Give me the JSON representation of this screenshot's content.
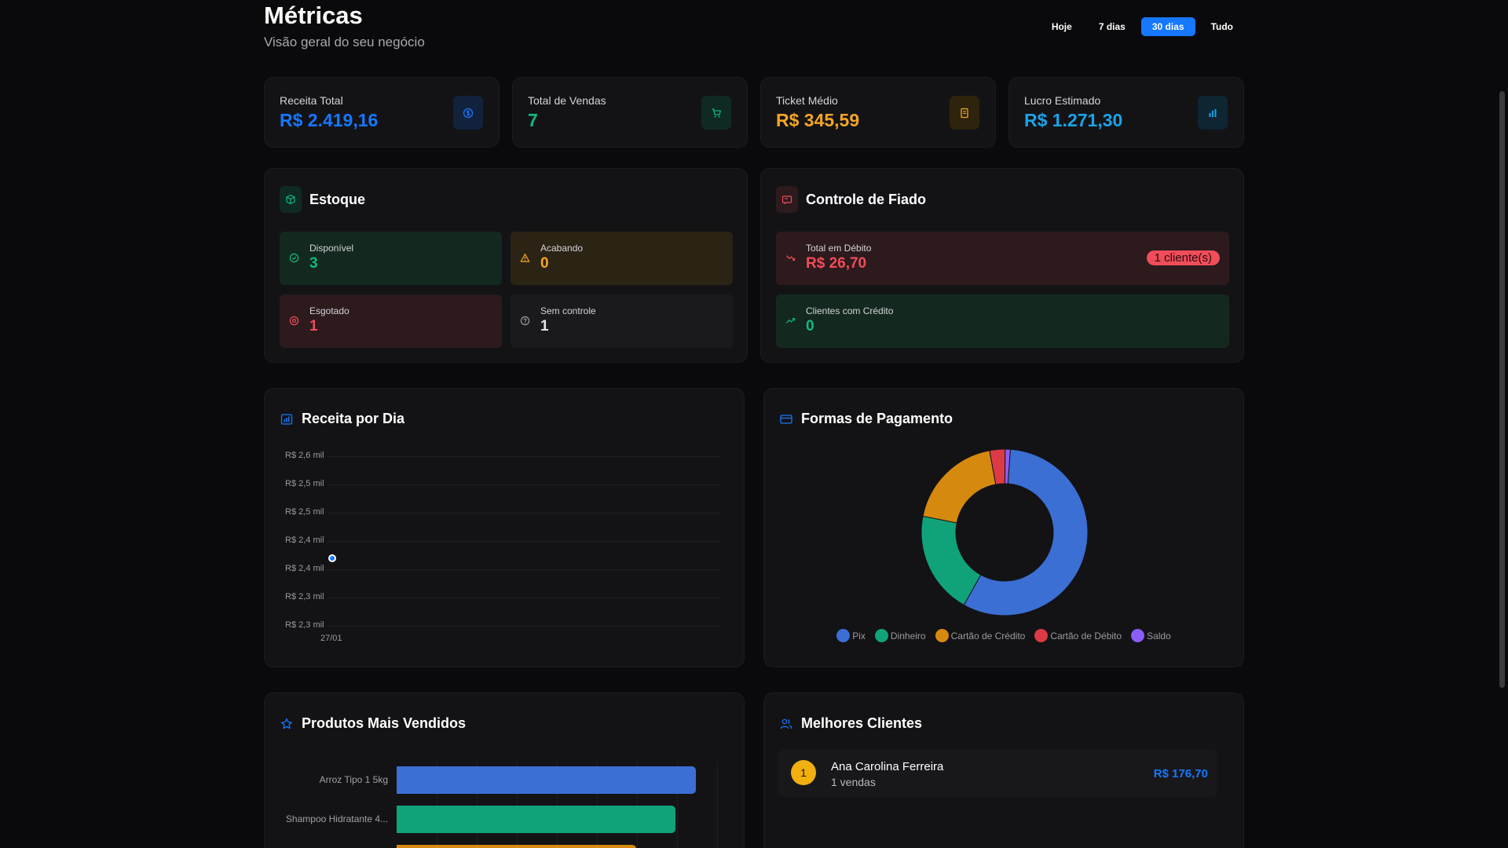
{
  "header": {
    "title": "Métricas",
    "subtitle": "Visão geral do seu negócio",
    "ranges": [
      "Hoje",
      "7 dias",
      "30 dias",
      "Tudo"
    ],
    "active_range": "30 dias"
  },
  "stats": [
    {
      "label": "Receita Total",
      "value": "R$ 2.419,16",
      "color": "#1677ff",
      "icon": "dollar-icon"
    },
    {
      "label": "Total de Vendas",
      "value": "7",
      "color": "#10b981",
      "icon": "cart-icon"
    },
    {
      "label": "Ticket Médio",
      "value": "R$ 345,59",
      "color": "#f5a524",
      "icon": "receipt-icon"
    },
    {
      "label": "Lucro Estimado",
      "value": "R$ 1.271,30",
      "color": "#1aa3e8",
      "icon": "bar-chart-icon"
    }
  ],
  "estoque": {
    "title": "Estoque",
    "tiles": [
      {
        "label": "Disponível",
        "value": "3",
        "color": "#10b981",
        "icon": "check-circle-icon"
      },
      {
        "label": "Acabando",
        "value": "0",
        "color": "#f5a524",
        "icon": "warning-icon"
      },
      {
        "label": "Esgotado",
        "value": "1",
        "color": "#ef4d5a",
        "icon": "x-circle-icon"
      },
      {
        "label": "Sem controle",
        "value": "1",
        "color": "#e4e4e7",
        "icon": "help-circle-icon"
      }
    ]
  },
  "fiado": {
    "title": "Controle de Fiado",
    "debit": {
      "label": "Total em Débito",
      "value": "R$ 26,70",
      "badge": "1 cliente(s)"
    },
    "credit": {
      "label": "Clientes com Crédito",
      "value": "0"
    }
  },
  "receita_por_dia": {
    "title": "Receita por Dia",
    "chart_data": {
      "type": "line",
      "x": [
        "27/01"
      ],
      "y_tick_labels": [
        "R$ 2,6 mil",
        "R$ 2,5 mil",
        "R$ 2,5 mil",
        "R$ 2,4 mil",
        "R$ 2,4 mil",
        "R$ 2,3 mil",
        "R$ 2,3 mil"
      ],
      "ylim": [
        2300,
        2600
      ],
      "series": [
        {
          "values": [
            2419.16
          ],
          "color": "#1677ff"
        }
      ],
      "grid": true
    }
  },
  "formas_pagamento": {
    "title": "Formas de Pagamento",
    "chart_data": {
      "type": "pie",
      "slices": [
        {
          "name": "Pix",
          "value": 57,
          "color": "#3b6fd4"
        },
        {
          "name": "Dinheiro",
          "value": 20,
          "color": "#10a37a"
        },
        {
          "name": "Cartão de Crédito",
          "value": 19,
          "color": "#d6890f"
        },
        {
          "name": "Cartão de Débito",
          "value": 3,
          "color": "#dc3a45"
        },
        {
          "name": "Saldo",
          "value": 1,
          "color": "#8b5cf6"
        }
      ],
      "legend": "bottom"
    }
  },
  "produtos": {
    "title": "Produtos Mais Vendidos",
    "chart_data": {
      "type": "bar",
      "orientation": "horizontal",
      "categories": [
        "Arroz Tipo 1 5kg",
        "Shampoo Hidratante 4...",
        ""
      ],
      "values": [
        100,
        93,
        80
      ],
      "colors": [
        "#3b6fd4",
        "#10a37a",
        "#d6890f"
      ],
      "xlim": [
        0,
        107
      ],
      "grid": true
    }
  },
  "clientes": {
    "title": "Melhores Clientes",
    "items": [
      {
        "rank": "1",
        "name": "Ana Carolina Ferreira",
        "sales": "1 vendas",
        "value": "R$ 176,70"
      }
    ]
  }
}
